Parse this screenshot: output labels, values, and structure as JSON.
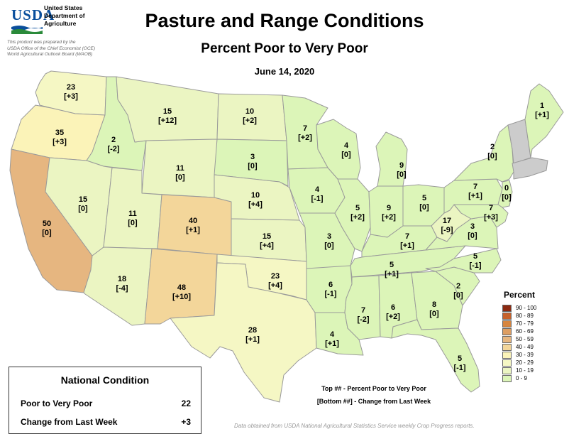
{
  "header": {
    "logo_text": "USDA",
    "department": [
      "United States",
      "Department of",
      "Agriculture"
    ],
    "prepared_by": [
      "This product was prepared by the",
      "USDA Office of the Chief Economist (OCE)",
      "World Agricultural Outlook Board (WAOB)"
    ],
    "title": "Pasture and Range Conditions",
    "subtitle": "Percent Poor to Very Poor",
    "date": "June 14, 2020"
  },
  "colors": {
    "c0_9": "#dcf5b8",
    "c10_19": "#ebf5c2",
    "c20_29": "#f5f7c4",
    "c30_39": "#fbf3b8",
    "c40_49": "#f3d69a",
    "c50_59": "#e6b680",
    "c60_69": "#dd9e63",
    "c70_79": "#d6853f",
    "c80_89": "#c7612a",
    "c90_100": "#8c2a12",
    "no_data": "#cccccc",
    "border": "#9a9a9a"
  },
  "states": [
    {
      "id": "WA",
      "top": "23",
      "bottom": "[+3]"
    },
    {
      "id": "OR",
      "top": "35",
      "bottom": "[+3]"
    },
    {
      "id": "CA",
      "top": "50",
      "bottom": "[0]"
    },
    {
      "id": "ID",
      "top": "2",
      "bottom": "[-2]"
    },
    {
      "id": "NV",
      "top": "15",
      "bottom": "[0]"
    },
    {
      "id": "MT",
      "top": "15",
      "bottom": "[+12]"
    },
    {
      "id": "WY",
      "top": "11",
      "bottom": "[0]"
    },
    {
      "id": "UT",
      "top": "11",
      "bottom": "[0]"
    },
    {
      "id": "AZ",
      "top": "18",
      "bottom": "[-4]"
    },
    {
      "id": "CO",
      "top": "40",
      "bottom": "[+1]"
    },
    {
      "id": "NM",
      "top": "48",
      "bottom": "[+10]"
    },
    {
      "id": "ND",
      "top": "10",
      "bottom": "[+2]"
    },
    {
      "id": "SD",
      "top": "3",
      "bottom": "[0]"
    },
    {
      "id": "NE",
      "top": "10",
      "bottom": "[+4]"
    },
    {
      "id": "KS",
      "top": "15",
      "bottom": "[+4]"
    },
    {
      "id": "OK",
      "top": "23",
      "bottom": "[+4]"
    },
    {
      "id": "TX",
      "top": "28",
      "bottom": "[+1]"
    },
    {
      "id": "MN",
      "top": "7",
      "bottom": "[+2]"
    },
    {
      "id": "IA",
      "top": "4",
      "bottom": "[-1]"
    },
    {
      "id": "MO",
      "top": "3",
      "bottom": "[0]"
    },
    {
      "id": "AR",
      "top": "6",
      "bottom": "[-1]"
    },
    {
      "id": "LA",
      "top": "4",
      "bottom": "[+1]"
    },
    {
      "id": "WI",
      "top": "4",
      "bottom": "[0]"
    },
    {
      "id": "IL",
      "top": "5",
      "bottom": "[+2]"
    },
    {
      "id": "MI",
      "top": "9",
      "bottom": "[0]"
    },
    {
      "id": "IN",
      "top": "9",
      "bottom": "[+2]"
    },
    {
      "id": "OH",
      "top": "5",
      "bottom": "[0]"
    },
    {
      "id": "KY",
      "top": "7",
      "bottom": "[+1]"
    },
    {
      "id": "TN",
      "top": "5",
      "bottom": "[+1]"
    },
    {
      "id": "MS",
      "top": "7",
      "bottom": "[-2]"
    },
    {
      "id": "AL",
      "top": "6",
      "bottom": "[+2]"
    },
    {
      "id": "GA",
      "top": "8",
      "bottom": "[0]"
    },
    {
      "id": "FL",
      "top": "5",
      "bottom": "[-1]"
    },
    {
      "id": "SC",
      "top": "2",
      "bottom": "[0]"
    },
    {
      "id": "NC",
      "top": "5",
      "bottom": "[-1]"
    },
    {
      "id": "VA",
      "top": "3",
      "bottom": "[0]"
    },
    {
      "id": "WV",
      "top": "17",
      "bottom": "[-9]"
    },
    {
      "id": "PA",
      "top": "7",
      "bottom": "[+1]"
    },
    {
      "id": "NY",
      "top": "2",
      "bottom": "[0]"
    },
    {
      "id": "NJ",
      "top": "0",
      "bottom": "[0]"
    },
    {
      "id": "MD",
      "top": "7",
      "bottom": "[+3]"
    },
    {
      "id": "ME",
      "top": "1",
      "bottom": "[+1]"
    }
  ],
  "legend": {
    "title": "Percent",
    "items": [
      {
        "label": "90 - 100",
        "color": "#8c2a12"
      },
      {
        "label": "80 - 89",
        "color": "#c7612a"
      },
      {
        "label": "70 - 79",
        "color": "#d6853f"
      },
      {
        "label": "60 - 69",
        "color": "#dd9e63"
      },
      {
        "label": "50 - 59",
        "color": "#e6b680"
      },
      {
        "label": "40 - 49",
        "color": "#f3d69a"
      },
      {
        "label": "30 - 39",
        "color": "#fbf3b8"
      },
      {
        "label": "20 - 29",
        "color": "#f5f7c4"
      },
      {
        "label": "10 - 19",
        "color": "#ebf5c2"
      },
      {
        "label": "0 - 9",
        "color": "#dcf5b8"
      }
    ]
  },
  "national": {
    "title": "National Condition",
    "poor_label": "Poor to Very Poor",
    "poor_value": "22",
    "change_label": "Change from Last Week",
    "change_value": "+3"
  },
  "key": {
    "line1": "Top ## - Percent Poor to Very Poor",
    "line2": "[Bottom ##] - Change from Last Week"
  },
  "source": "Data obtained from USDA National Agricultural Statistics Service weekly Crop Progress reports."
}
